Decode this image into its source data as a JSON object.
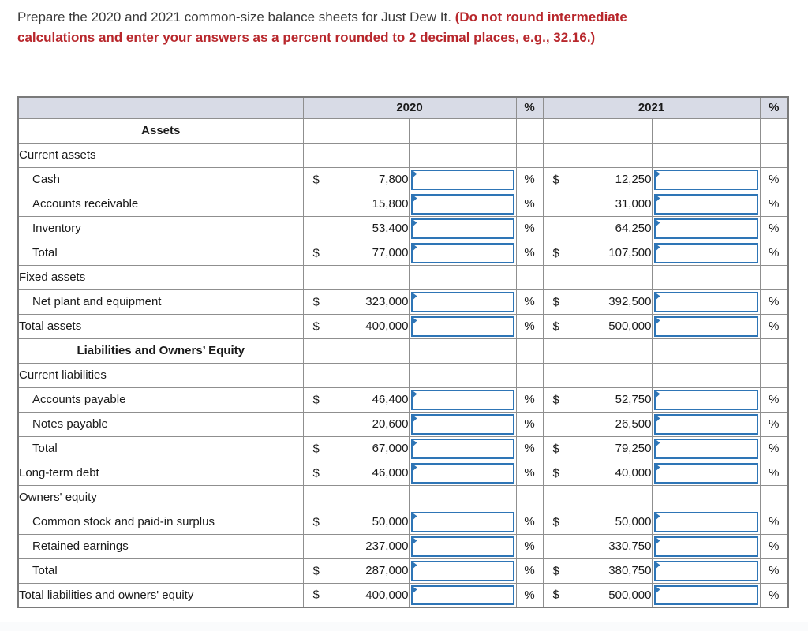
{
  "instructions": {
    "normal": "Prepare the 2020 and 2021 common-size balance sheets for Just Dew It. ",
    "emphasis": "(Do not round intermediate calculations and enter your answers as a percent rounded to 2 decimal places, e.g., 32.16.)"
  },
  "colors": {
    "accent_blue": "#2e75b6",
    "header_bg": "#d8dbe6",
    "emphasis_red": "#b8272c",
    "rule_black": "#000000"
  },
  "table": {
    "pct_symbol": "%",
    "col_headers": {
      "label": "",
      "y2020": "2020",
      "pct1": "%",
      "y2021": "2021",
      "pct2": "%"
    },
    "rows": [
      {
        "label": "Assets",
        "kind": "section"
      },
      {
        "label": "Current assets",
        "kind": "group"
      },
      {
        "label": "Cash",
        "kind": "item",
        "indent": true,
        "dollar2020": "$",
        "amt2020": "7,800",
        "dollar2021": "$",
        "amt2021": "12,250"
      },
      {
        "label": "Accounts receivable",
        "kind": "item",
        "indent": true,
        "dollar2020": "",
        "amt2020": "15,800",
        "dollar2021": "",
        "amt2021": "31,000"
      },
      {
        "label": "Inventory",
        "kind": "item",
        "indent": true,
        "dollar2020": "",
        "amt2020": "53,400",
        "dollar2021": "",
        "amt2021": "64,250"
      },
      {
        "label": "Total",
        "kind": "subtotal",
        "indent": true,
        "dollar2020": "$",
        "amt2020": "77,000",
        "dollar2021": "$",
        "amt2021": "107,500"
      },
      {
        "label": "Fixed assets",
        "kind": "group"
      },
      {
        "label": "Net plant and equipment",
        "kind": "item",
        "indent": true,
        "dollar2020": "$",
        "amt2020": "323,000",
        "dollar2021": "$",
        "amt2021": "392,500"
      },
      {
        "label": "Total assets",
        "kind": "grandtotal",
        "dollar2020": "$",
        "amt2020": "400,000",
        "dollar2021": "$",
        "amt2021": "500,000"
      },
      {
        "label": "Liabilities and Owners’ Equity",
        "kind": "section"
      },
      {
        "label": "Current liabilities",
        "kind": "group"
      },
      {
        "label": "Accounts payable",
        "kind": "item",
        "indent": true,
        "dollar2020": "$",
        "amt2020": "46,400",
        "dollar2021": "$",
        "amt2021": "52,750"
      },
      {
        "label": "Notes payable",
        "kind": "item",
        "indent": true,
        "dollar2020": "",
        "amt2020": "20,600",
        "dollar2021": "",
        "amt2021": "26,500"
      },
      {
        "label": "Total",
        "kind": "subtotal",
        "indent": true,
        "dollar2020": "$",
        "amt2020": "67,000",
        "dollar2021": "$",
        "amt2021": "79,250"
      },
      {
        "label": "Long-term debt",
        "kind": "line",
        "dollar2020": "$",
        "amt2020": "46,000",
        "dollar2021": "$",
        "amt2021": "40,000"
      },
      {
        "label": "Owners' equity",
        "kind": "group"
      },
      {
        "label": "Common stock and paid-in surplus",
        "kind": "item",
        "indent": true,
        "dollar2020": "$",
        "amt2020": "50,000",
        "dollar2021": "$",
        "amt2021": "50,000"
      },
      {
        "label": "Retained earnings",
        "kind": "item",
        "indent": true,
        "dollar2020": "",
        "amt2020": "237,000",
        "dollar2021": "",
        "amt2021": "330,750"
      },
      {
        "label": "Total",
        "kind": "subtotal",
        "indent": true,
        "dollar2020": "$",
        "amt2020": "287,000",
        "dollar2021": "$",
        "amt2021": "380,750"
      },
      {
        "label": "Total liabilities and owners' equity",
        "kind": "grandtotal",
        "dollar2020": "$",
        "amt2020": "400,000",
        "dollar2021": "$",
        "amt2021": "500,000"
      }
    ]
  }
}
